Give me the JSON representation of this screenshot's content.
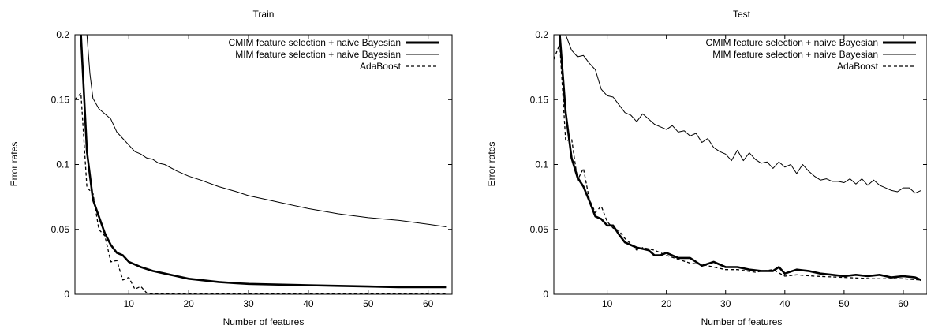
{
  "colors": {
    "axis": "#000000",
    "line": "#000000",
    "background": "#ffffff"
  },
  "chart_data": [
    {
      "type": "line",
      "title": "Train",
      "xlabel": "Number of features",
      "ylabel": "Error rates",
      "xlim": [
        1,
        64
      ],
      "ylim": [
        0,
        0.2
      ],
      "xticks": [
        10,
        20,
        30,
        40,
        50,
        60
      ],
      "xtick_labels": [
        "10",
        "20",
        "30",
        "40",
        "50",
        "60"
      ],
      "yticks": [
        0,
        0.05,
        0.1,
        0.15,
        0.2
      ],
      "ytick_labels": [
        "0",
        "0.05",
        "0.1",
        "0.15",
        "0.2"
      ],
      "grid": false,
      "legend_position": "top-right",
      "series": [
        {
          "name": "CMIM feature selection + naive Bayesian",
          "style": "thick",
          "x": [
            2,
            3,
            4,
            5,
            6,
            7,
            8,
            9,
            10,
            11,
            12,
            14,
            16,
            18,
            20,
            22,
            25,
            28,
            30,
            35,
            40,
            45,
            50,
            55,
            60,
            63
          ],
          "y": [
            0.2,
            0.11,
            0.073,
            0.06,
            0.047,
            0.038,
            0.032,
            0.03,
            0.025,
            0.023,
            0.021,
            0.018,
            0.016,
            0.014,
            0.012,
            0.011,
            0.0095,
            0.0085,
            0.008,
            0.0075,
            0.007,
            0.0065,
            0.006,
            0.0055,
            0.0055,
            0.0055
          ]
        },
        {
          "name": "MIM feature selection + naive Bayesian",
          "style": "thin",
          "x": [
            3,
            3.5,
            4,
            5,
            6,
            7,
            8,
            9,
            10,
            11,
            12,
            13,
            14,
            15,
            16,
            18,
            20,
            22,
            25,
            28,
            30,
            35,
            40,
            45,
            50,
            55,
            60,
            63
          ],
          "y": [
            0.2,
            0.17,
            0.151,
            0.143,
            0.139,
            0.135,
            0.125,
            0.12,
            0.115,
            0.11,
            0.108,
            0.105,
            0.104,
            0.101,
            0.1,
            0.095,
            0.091,
            0.088,
            0.083,
            0.079,
            0.076,
            0.071,
            0.066,
            0.062,
            0.059,
            0.057,
            0.054,
            0.052
          ]
        },
        {
          "name": "AdaBoost",
          "style": "dashed",
          "x": [
            1,
            2,
            3,
            4,
            5,
            6,
            7,
            8,
            9,
            10,
            11,
            12,
            13,
            14,
            16,
            20,
            30,
            40,
            50,
            63
          ],
          "y": [
            0.15,
            0.155,
            0.082,
            0.078,
            0.05,
            0.045,
            0.025,
            0.026,
            0.011,
            0.013,
            0.004,
            0.006,
            0.001,
            0.0005,
            0.0003,
            0.0002,
            0.0002,
            0.0002,
            0.0002,
            0.0002
          ]
        }
      ]
    },
    {
      "type": "line",
      "title": "Test",
      "xlabel": "Number of features",
      "ylabel": "Error rates",
      "xlim": [
        1,
        64
      ],
      "ylim": [
        0,
        0.2
      ],
      "xticks": [
        10,
        20,
        30,
        40,
        50,
        60
      ],
      "xtick_labels": [
        "10",
        "20",
        "30",
        "40",
        "50",
        "60"
      ],
      "yticks": [
        0,
        0.05,
        0.1,
        0.15,
        0.2
      ],
      "ytick_labels": [
        "0",
        "0.05",
        "0.1",
        "0.15",
        "0.2"
      ],
      "grid": false,
      "legend_position": "top-right",
      "series": [
        {
          "name": "CMIM feature selection + naive Bayesian",
          "style": "thick",
          "x": [
            2,
            3,
            4,
            5,
            6,
            7,
            8,
            9,
            10,
            11,
            12,
            13,
            14,
            15,
            16,
            17,
            18,
            19,
            20,
            22,
            24,
            26,
            28,
            30,
            32,
            34,
            36,
            38,
            39,
            40,
            42,
            44,
            46,
            48,
            50,
            52,
            54,
            56,
            58,
            60,
            62,
            63
          ],
          "y": [
            0.2,
            0.14,
            0.105,
            0.09,
            0.083,
            0.072,
            0.06,
            0.058,
            0.053,
            0.053,
            0.046,
            0.04,
            0.038,
            0.036,
            0.035,
            0.034,
            0.03,
            0.03,
            0.032,
            0.028,
            0.028,
            0.022,
            0.025,
            0.021,
            0.021,
            0.019,
            0.018,
            0.018,
            0.021,
            0.016,
            0.019,
            0.018,
            0.016,
            0.015,
            0.014,
            0.015,
            0.014,
            0.015,
            0.013,
            0.014,
            0.013,
            0.011
          ]
        },
        {
          "name": "MIM feature selection + naive Bayesian",
          "style": "thin",
          "x": [
            3,
            4,
            5,
            6,
            7,
            8,
            9,
            10,
            11,
            12,
            13,
            14,
            15,
            16,
            17,
            18,
            19,
            20,
            21,
            22,
            23,
            24,
            25,
            26,
            27,
            28,
            29,
            30,
            31,
            32,
            33,
            34,
            35,
            36,
            37,
            38,
            39,
            40,
            41,
            42,
            43,
            44,
            45,
            46,
            47,
            48,
            49,
            50,
            51,
            52,
            53,
            54,
            55,
            56,
            57,
            58,
            59,
            60,
            61,
            62,
            63
          ],
          "y": [
            0.2,
            0.188,
            0.183,
            0.184,
            0.178,
            0.173,
            0.158,
            0.153,
            0.152,
            0.146,
            0.14,
            0.138,
            0.133,
            0.139,
            0.135,
            0.131,
            0.129,
            0.127,
            0.13,
            0.125,
            0.126,
            0.122,
            0.124,
            0.117,
            0.12,
            0.113,
            0.11,
            0.108,
            0.103,
            0.111,
            0.103,
            0.109,
            0.104,
            0.101,
            0.102,
            0.097,
            0.102,
            0.098,
            0.1,
            0.093,
            0.1,
            0.095,
            0.091,
            0.088,
            0.089,
            0.087,
            0.087,
            0.086,
            0.089,
            0.085,
            0.089,
            0.084,
            0.088,
            0.084,
            0.082,
            0.08,
            0.079,
            0.082,
            0.082,
            0.078,
            0.08
          ]
        },
        {
          "name": "AdaBoost",
          "style": "dashed",
          "x": [
            1,
            2,
            3,
            4,
            5,
            6,
            7,
            8,
            9,
            10,
            11,
            12,
            13,
            14,
            15,
            16,
            18,
            20,
            22,
            24,
            26,
            28,
            30,
            32,
            35,
            38,
            40,
            42,
            45,
            50,
            55,
            60,
            63
          ],
          "y": [
            0.181,
            0.193,
            0.118,
            0.12,
            0.088,
            0.097,
            0.073,
            0.063,
            0.068,
            0.056,
            0.051,
            0.049,
            0.043,
            0.039,
            0.034,
            0.036,
            0.034,
            0.03,
            0.027,
            0.024,
            0.023,
            0.021,
            0.019,
            0.019,
            0.017,
            0.019,
            0.014,
            0.015,
            0.014,
            0.013,
            0.012,
            0.012,
            0.011
          ]
        }
      ]
    }
  ]
}
